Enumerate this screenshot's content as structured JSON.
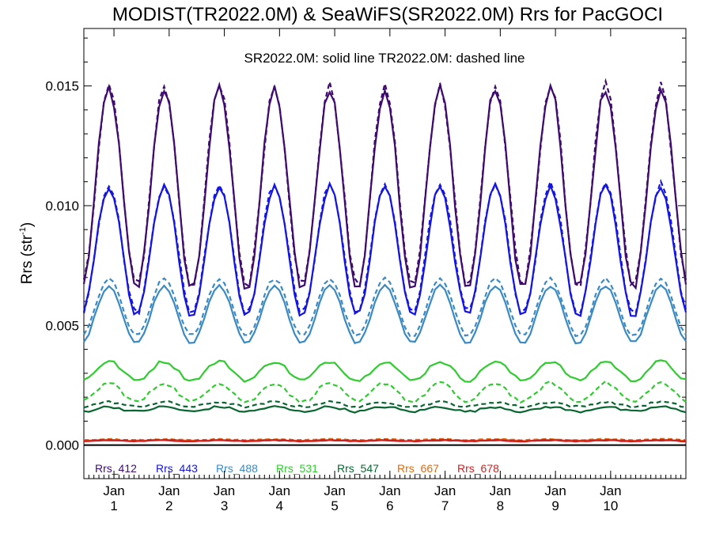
{
  "chart_data": {
    "type": "line",
    "title": "MODIST(TR2022.0M) & SeaWiFS(SR2022.0M)  Rrs for PacGOCI",
    "annotation": "SR2022.0M: solid line   TR2022.0M: dashed line",
    "ylabel": "Rrs (str",
    "ylabel_sup": "-1",
    "ylabel_close": ")",
    "ylim": [
      -0.0014,
      0.0174
    ],
    "xlim": [
      0,
      120
    ],
    "yticks": [
      "0.000",
      "0.005",
      "0.010",
      "0.015"
    ],
    "ytick_values": [
      0.0,
      0.005,
      0.01,
      0.015
    ],
    "x_ticks": [
      {
        "month": "Jan",
        "year": "1",
        "x": 6
      },
      {
        "month": "Jan",
        "year": "2",
        "x": 17
      },
      {
        "month": "Jan",
        "year": "3",
        "x": 28
      },
      {
        "month": "Jan",
        "year": "4",
        "x": 39
      },
      {
        "month": "Jan",
        "year": "5",
        "x": 50
      },
      {
        "month": "Jan",
        "year": "6",
        "x": 61
      },
      {
        "month": "Jan",
        "year": "7",
        "x": 72
      },
      {
        "month": "Jan",
        "year": "8",
        "x": 83
      },
      {
        "month": "Jan",
        "year": "9",
        "x": 94
      },
      {
        "month": "Jan",
        "year": "10",
        "x": 105
      }
    ],
    "series": [
      {
        "name": "Rrs_412",
        "color": "#3f0b70",
        "kind": "seasonal",
        "mean": 0.0107,
        "amp": 0.0042,
        "tr_offset": 0.0001,
        "noise": 0.0004
      },
      {
        "name": "Rrs_443",
        "color": "#1414e6",
        "kind": "seasonal",
        "mean": 0.0081,
        "amp": 0.0027,
        "tr_offset": 0.0001,
        "noise": 0.00025
      },
      {
        "name": "Rrs_488",
        "color": "#3a8ac4",
        "kind": "seasonal",
        "mean": 0.00545,
        "amp": 0.0012,
        "tr_offset": 0.0003,
        "noise": 0.0001
      },
      {
        "name": "Rrs_531",
        "color": "#2ecc2e",
        "kind": "flat",
        "mean": 0.0031,
        "amp": 0.0004,
        "tr_offset": -0.0009,
        "noise": 0.00015
      },
      {
        "name": "Rrs_547",
        "color": "#0a6630",
        "kind": "flat",
        "mean": 0.0015,
        "amp": 0.0001,
        "tr_offset": 0.0002,
        "noise": 0.0001
      },
      {
        "name": "Rrs_667",
        "color": "#e06a10",
        "kind": "flat",
        "mean": 0.0002,
        "amp": 2e-05,
        "tr_offset": 3e-05,
        "noise": 3e-05
      },
      {
        "name": "Rrs_678",
        "color": "#cc2222",
        "kind": "flat",
        "mean": 0.00018,
        "amp": 2e-05,
        "tr_offset": 2e-05,
        "noise": 3e-05
      }
    ]
  }
}
